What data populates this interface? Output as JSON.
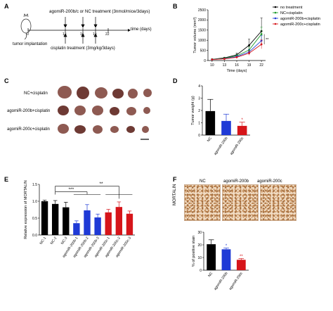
{
  "panels": {
    "A": {
      "label": "A",
      "treatment_text": "agomiR-200b/c or NC treatment (3nmol/mice/3days)",
      "implant_text": "tumor implantation",
      "cisplatin_text": "cisplatin treatment (3mg/kg/3days)",
      "time_text": "time (days)",
      "ticks": [
        "0",
        "13",
        "16",
        "19",
        "22"
      ]
    },
    "B": {
      "label": "B"
    },
    "C": {
      "label": "C",
      "rows": [
        {
          "label": "NC+cisplatin"
        },
        {
          "label": "agomiR-200b+cisplatin"
        },
        {
          "label": "agomiR-200c+cisplatin"
        }
      ]
    },
    "D": {
      "label": "D"
    },
    "E": {
      "label": "E"
    },
    "F": {
      "label": "F",
      "image_headers": [
        "NC",
        "agomiR-200b",
        "agomiR-200c"
      ],
      "row_label": "MORTALIN"
    }
  },
  "chart_data": [
    {
      "id": "B",
      "type": "line",
      "title": "",
      "xlabel": "Time (days)",
      "ylabel": "Tumor volume (mm³)",
      "x": [
        10,
        13,
        16,
        19,
        22
      ],
      "xticks": [
        "10",
        "13",
        "16",
        "19",
        "22"
      ],
      "ylim": [
        0,
        2500
      ],
      "yticks": [
        "0",
        "500",
        "1000",
        "1500",
        "2000",
        "2500"
      ],
      "legend_position": "top-right",
      "annotation": "**",
      "series": [
        {
          "name": "no treatment",
          "color": "#000000",
          "values": [
            60,
            130,
            280,
            750,
            1450
          ],
          "errors": [
            10,
            30,
            80,
            300,
            650
          ]
        },
        {
          "name": "NC+cisplatin",
          "color": "#1f9a2b",
          "values": [
            60,
            110,
            230,
            520,
            1300
          ],
          "errors": [
            10,
            25,
            60,
            150,
            350
          ]
        },
        {
          "name": "agomiR-200b+cisplatin",
          "color": "#1f3ad6",
          "values": [
            50,
            90,
            190,
            420,
            980
          ],
          "errors": [
            8,
            20,
            50,
            120,
            250
          ]
        },
        {
          "name": "agomiR-200c+cisplatin",
          "color": "#d6151a",
          "values": [
            50,
            80,
            160,
            360,
            800
          ],
          "errors": [
            8,
            15,
            40,
            100,
            220
          ]
        }
      ]
    },
    {
      "id": "D",
      "type": "bar",
      "title": "",
      "xlabel": "",
      "ylabel": "Tumor weight (g)",
      "categories": [
        "NC",
        "agomiR-200b",
        "agomiR-200c"
      ],
      "values": [
        1.95,
        1.15,
        0.75
      ],
      "errors": [
        0.95,
        0.55,
        0.3
      ],
      "colors": [
        "#000000",
        "#1f3ad6",
        "#d6151a"
      ],
      "ylim": [
        0,
        4
      ],
      "yticks": [
        "0",
        "1",
        "2",
        "3",
        "4"
      ],
      "annotations": [
        "",
        "",
        "*"
      ]
    },
    {
      "id": "E",
      "type": "bar",
      "title": "",
      "xlabel": "",
      "ylabel": "Relative expression of MORTALIN",
      "categories": [
        "NC-1",
        "NC-2",
        "NC-3",
        "agomiR-200b-1",
        "agomiR-200b-2",
        "agomiR-200b-3",
        "agomiR-200c-1",
        "agomiR-200c-2",
        "agomiR-200c-3"
      ],
      "values": [
        1.0,
        0.92,
        0.82,
        0.35,
        0.73,
        0.52,
        0.67,
        0.83,
        0.63
      ],
      "errors": [
        0.03,
        0.1,
        0.15,
        0.07,
        0.17,
        0.1,
        0.09,
        0.15,
        0.08
      ],
      "colors": [
        "#000000",
        "#000000",
        "#000000",
        "#1f3ad6",
        "#1f3ad6",
        "#1f3ad6",
        "#d6151a",
        "#d6151a",
        "#d6151a"
      ],
      "ylim": [
        0,
        1.5
      ],
      "yticks": [
        "0.0",
        "0.5",
        "1.0",
        "1.5"
      ],
      "brackets": [
        "***",
        "**"
      ]
    },
    {
      "id": "F",
      "type": "bar",
      "title": "",
      "xlabel": "",
      "ylabel": "% of positive stain",
      "categories": [
        "NC",
        "agomiR-200b",
        "agomiR-200c"
      ],
      "values": [
        20.5,
        16.5,
        8.2
      ],
      "errors": [
        3.5,
        1.0,
        1.0
      ],
      "colors": [
        "#000000",
        "#1f3ad6",
        "#d6151a"
      ],
      "ylim": [
        0,
        30
      ],
      "yticks": [
        "0",
        "10",
        "20",
        "30"
      ],
      "annotations": [
        "",
        "*",
        "**"
      ]
    }
  ]
}
